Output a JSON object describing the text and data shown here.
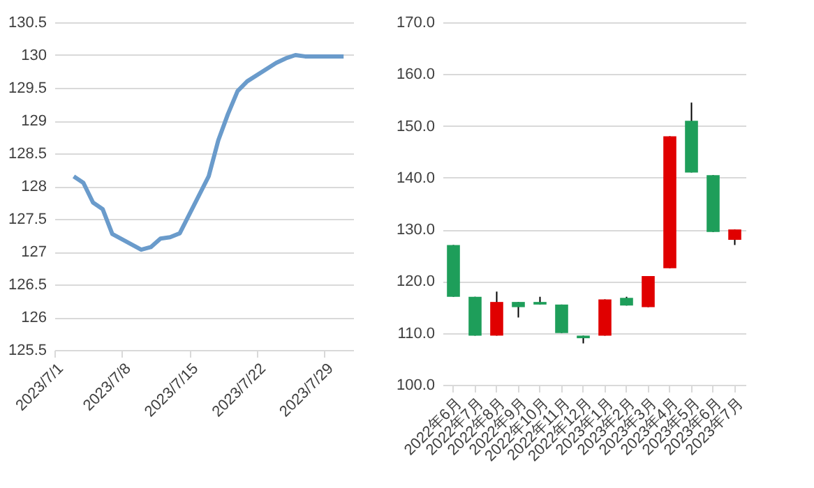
{
  "chart_data": [
    {
      "type": "line",
      "x": [
        "2023-07-03",
        "2023-07-04",
        "2023-07-05",
        "2023-07-06",
        "2023-07-07",
        "2023-07-10",
        "2023-07-11",
        "2023-07-12",
        "2023-07-13",
        "2023-07-14",
        "2023-07-17",
        "2023-07-18",
        "2023-07-19",
        "2023-07-20",
        "2023-07-21",
        "2023-07-24",
        "2023-07-25",
        "2023-07-26",
        "2023-07-27",
        "2023-07-28",
        "2023-07-31"
      ],
      "series": [
        {
          "color": "#6a9bcb",
          "values": [
            128.15,
            128.05,
            127.75,
            127.65,
            127.27,
            127.03,
            127.07,
            127.2,
            127.22,
            127.28,
            128.15,
            128.7,
            129.1,
            129.45,
            129.6,
            129.88,
            129.95,
            130.0,
            129.98,
            129.98,
            129.98
          ]
        }
      ],
      "xlim": [
        "2023-07-01",
        "2023-08-01"
      ],
      "xticks": [
        {
          "value": "2023-07-01",
          "label": "2023/7/1"
        },
        {
          "value": "2023-07-08",
          "label": "2023/7/8"
        },
        {
          "value": "2023-07-15",
          "label": "2023/7/15"
        },
        {
          "value": "2023-07-22",
          "label": "2023/7/22"
        },
        {
          "value": "2023-07-29",
          "label": "2023/7/29"
        }
      ],
      "ylim": [
        125.5,
        130.5
      ],
      "yticks": [
        125.5,
        126,
        126.5,
        127,
        127.5,
        128,
        128.5,
        129,
        129.5,
        130,
        130.5
      ],
      "grid": "y",
      "legend": false,
      "marker": "none",
      "line_style": "solid"
    },
    {
      "type": "candlestick",
      "categories": [
        "2022年6月",
        "2022年7月",
        "2022年8月",
        "2022年9月",
        "2022年10月",
        "2022年11月",
        "2022年12月",
        "2023年1月",
        "2023年2月",
        "2023年3月",
        "2023年4月",
        "2023年5月",
        "2023年6月",
        "2023年7月"
      ],
      "ohlc": [
        [
          127,
          127,
          117,
          117
        ],
        [
          117,
          117,
          109.5,
          109.5
        ],
        [
          109.5,
          118,
          109.5,
          116
        ],
        [
          116,
          116,
          113,
          115
        ],
        [
          116,
          117,
          115.5,
          115.5
        ],
        [
          115.5,
          115.5,
          110,
          110
        ],
        [
          109.5,
          109.5,
          108,
          109
        ],
        [
          109.5,
          116.5,
          109.5,
          116.5
        ],
        [
          116.8,
          117,
          115.3,
          115.3
        ],
        [
          115,
          121,
          115,
          121
        ],
        [
          122.5,
          148,
          122.5,
          148
        ],
        [
          151,
          154.5,
          141,
          141
        ],
        [
          140.5,
          140.5,
          129.5,
          129.5
        ],
        [
          128,
          130,
          127,
          130
        ]
      ],
      "colors": [
        "#1e9e5a",
        "#1e9e5a",
        "#e00000",
        "#1e9e5a",
        "#1e9e5a",
        "#1e9e5a",
        "#1e9e5a",
        "#e00000",
        "#1e9e5a",
        "#e00000",
        "#e00000",
        "#1e9e5a",
        "#1e9e5a",
        "#e00000"
      ],
      "ylim": [
        100,
        170
      ],
      "yticks": [
        {
          "value": 100,
          "label": "100.0"
        },
        {
          "value": 110,
          "label": "110.0"
        },
        {
          "value": 120,
          "label": "120.0"
        },
        {
          "value": 130,
          "label": "130.0"
        },
        {
          "value": 140,
          "label": "140.0"
        },
        {
          "value": 150,
          "label": "150.0"
        },
        {
          "value": 160,
          "label": "160.0"
        },
        {
          "value": 170,
          "label": "170.0"
        }
      ],
      "grid": "y",
      "legend": false
    }
  ]
}
